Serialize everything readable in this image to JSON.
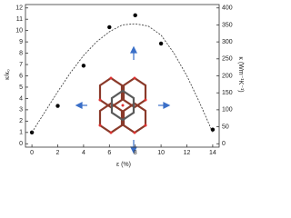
{
  "chart_data": {
    "type": "scatter",
    "x_label": "ε (%)",
    "y_label": "κ/κ₀",
    "y2_label": "κ (Wm⁻¹K⁻¹)",
    "xlim": [
      -0.5,
      14.5
    ],
    "xticks": [
      0,
      2,
      4,
      6,
      8,
      10,
      12,
      14
    ],
    "ylim": [
      -0.3,
      12.3
    ],
    "yticks": [
      0,
      1,
      2,
      3,
      4,
      5,
      6,
      7,
      8,
      9,
      10,
      11,
      12
    ],
    "y2lim": [
      -10,
      410
    ],
    "y2ticks": [
      0,
      50,
      100,
      150,
      200,
      250,
      300,
      350,
      400
    ],
    "series": [
      {
        "color": "#000000",
        "style": "points",
        "x": [
          0,
          2,
          4,
          6,
          8,
          10,
          14
        ],
        "values": [
          1.0,
          3.35,
          6.9,
          10.3,
          11.35,
          8.85,
          1.25
        ]
      },
      {
        "color": "#333333",
        "style": "dashed",
        "x": [
          0,
          1,
          2,
          3,
          4,
          5,
          6,
          7,
          8,
          9,
          10,
          11,
          12,
          13,
          14
        ],
        "values": [
          1.0,
          2.8,
          4.6,
          6.3,
          7.8,
          9.0,
          9.9,
          10.5,
          10.6,
          10.4,
          9.6,
          8.0,
          6.0,
          3.6,
          1.0
        ]
      }
    ]
  }
}
